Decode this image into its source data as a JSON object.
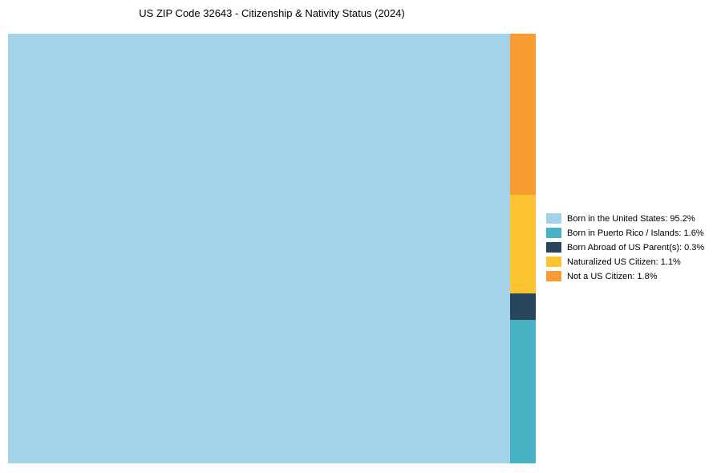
{
  "page": {
    "background": "#ffffff"
  },
  "chart_data": {
    "type": "treemap",
    "title": "US ZIP Code 32643 - Citizenship & Nativity Status (2024)",
    "categories": [
      "Born in the United States",
      "Born in Puerto Rico / Islands",
      "Born Abroad of US Parent(s)",
      "Naturalized US Citizen",
      "Not a US Citizen"
    ],
    "values": [
      95.2,
      1.6,
      0.3,
      1.1,
      1.8
    ],
    "unit": "%",
    "colors": [
      "#a4d3e9",
      "#47b2c3",
      "#28455c",
      "#fdc431",
      "#f99b33"
    ],
    "layout": {
      "main_index": 0,
      "column_order_top_to_bottom": [
        4,
        3,
        2,
        1
      ],
      "legend_position": "right",
      "grid": false
    },
    "legend": [
      {
        "label": "Born in the United States: 95.2%",
        "color": "#a4d3e9"
      },
      {
        "label": "Born in Puerto Rico / Islands: 1.6%",
        "color": "#47b2c3"
      },
      {
        "label": "Born Abroad of US Parent(s): 0.3%",
        "color": "#28455c"
      },
      {
        "label": "Naturalized US Citizen: 1.1%",
        "color": "#fdc431"
      },
      {
        "label": "Not a US Citizen: 1.8%",
        "color": "#f99b33"
      }
    ]
  }
}
